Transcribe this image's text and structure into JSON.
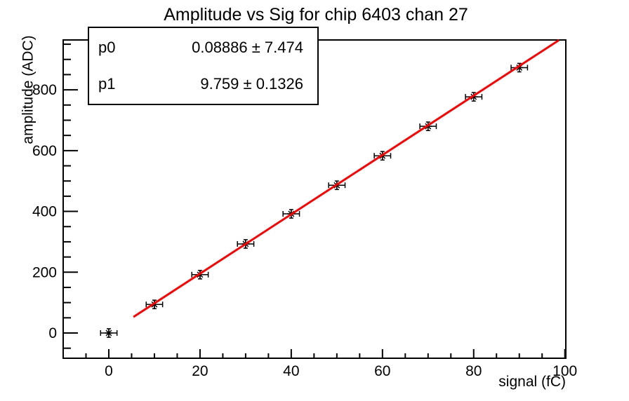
{
  "page": {
    "background_color": "#ffffff",
    "foreground_color": "#000000"
  },
  "chart_data": {
    "type": "scatter",
    "title": "Amplitude vs Sig for chip 6403 chan 27",
    "xlabel": "signal (fC)",
    "ylabel": "amplitude (ADC)",
    "x": [
      0,
      10,
      20,
      30,
      40,
      50,
      60,
      70,
      80,
      90
    ],
    "y": [
      0,
      94,
      192,
      293,
      392,
      486,
      583,
      680,
      777,
      873
    ],
    "x_error_halfwidth_fC": 1.8,
    "y_error_halfwidth_adc": 14,
    "marker": "asterisk",
    "marker_color": "#000000",
    "axis_color": "#000000",
    "grid": false,
    "legend": "none",
    "x_range": [
      -10,
      100.2
    ],
    "y_range": [
      -83,
      964
    ],
    "x_major_ticks": [
      0,
      20,
      40,
      60,
      80,
      100
    ],
    "y_major_ticks": [
      0,
      200,
      400,
      600,
      800
    ],
    "x_minor_step": 5,
    "y_minor_step": 50,
    "fit_line": {
      "type": "linear",
      "p0": 0.08886,
      "p1": 9.759,
      "x_start": 5.4,
      "x_end": 98.7,
      "color": "#ff0000",
      "width": 3
    }
  },
  "stats_box": {
    "rows": [
      {
        "label": "p0",
        "value": "0.08886 ± 7.474"
      },
      {
        "label": "p1",
        "value": "9.759 ± 0.1326"
      }
    ]
  }
}
